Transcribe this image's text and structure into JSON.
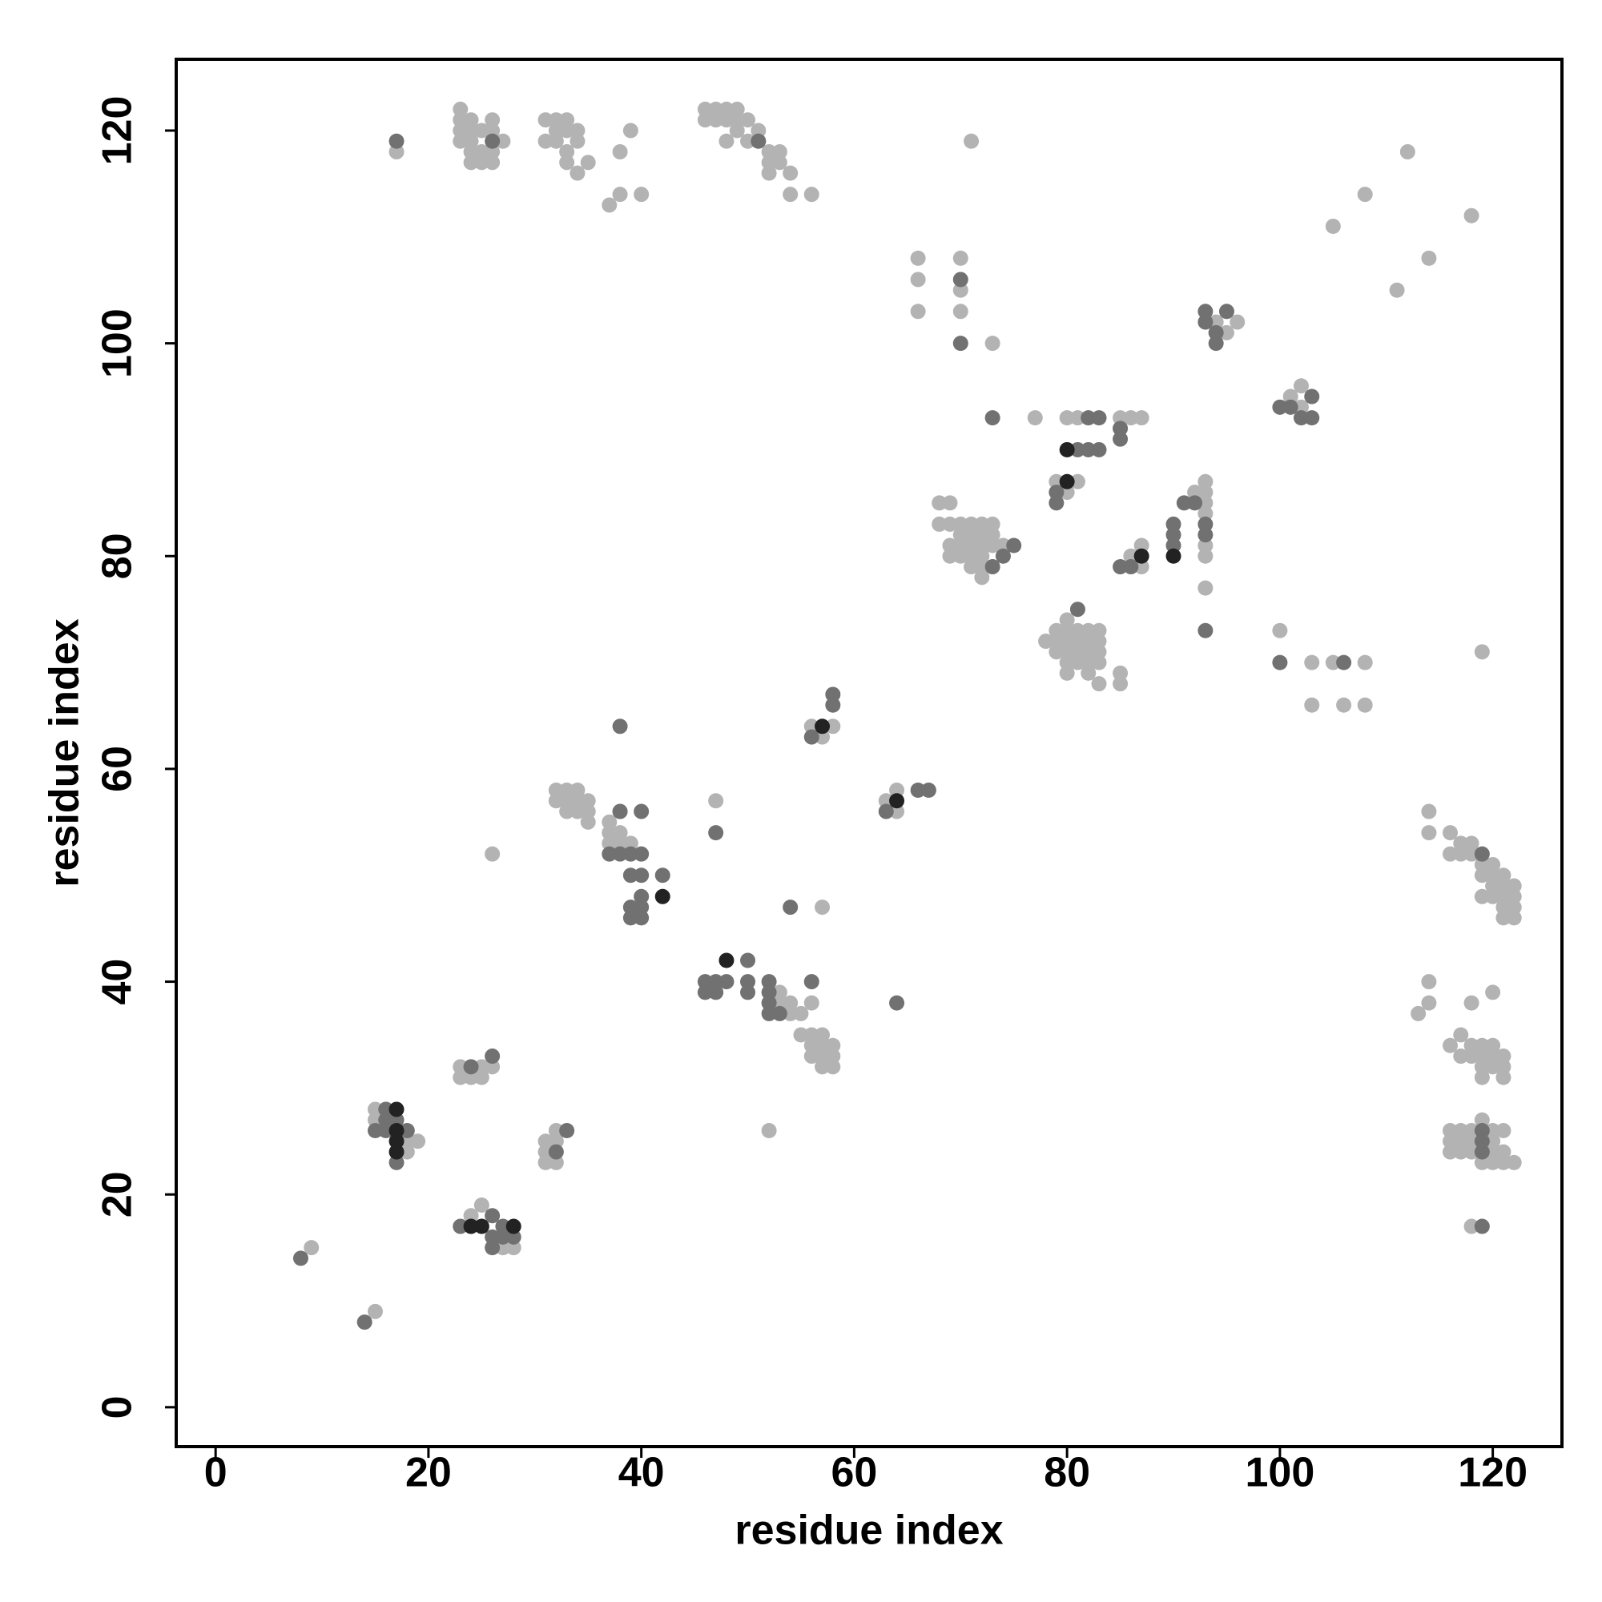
{
  "chart_data": {
    "type": "scatter",
    "xlabel": "residue index",
    "ylabel": "residue index",
    "xlim": [
      -3.7,
      126.5
    ],
    "ylim": [
      -3.7,
      126.7
    ],
    "xticks": [
      0,
      20,
      40,
      60,
      80,
      100,
      120
    ],
    "yticks": [
      0,
      20,
      40,
      60,
      80,
      100,
      120
    ],
    "series": [
      {
        "color": "#b3b3b3",
        "x": [
          23,
          23,
          23,
          23,
          24,
          24,
          24,
          24,
          24,
          25,
          25,
          25,
          26,
          26,
          26,
          26,
          27,
          17,
          31,
          31,
          32,
          32,
          32,
          33,
          33,
          33,
          33,
          34,
          34,
          34,
          35,
          37,
          38,
          38,
          39,
          40,
          46,
          46,
          47,
          47,
          48,
          48,
          48,
          49,
          49,
          49,
          50,
          50,
          51,
          51,
          52,
          52,
          52,
          53,
          53,
          54,
          54,
          56,
          71,
          105,
          108,
          112,
          118,
          111,
          114,
          66,
          66,
          66,
          70,
          70,
          70,
          73,
          77,
          80,
          81,
          85,
          86,
          87,
          85,
          79,
          80,
          81,
          93,
          92,
          93,
          93,
          93,
          93,
          93,
          93,
          68,
          69,
          68,
          69,
          70,
          71,
          72,
          73,
          70,
          71,
          72,
          73,
          69,
          70,
          71,
          72,
          73,
          74,
          70,
          71,
          72,
          74,
          69,
          71,
          72,
          72,
          87,
          86,
          87,
          101,
          102,
          102,
          78,
          79,
          80,
          79,
          80,
          81,
          82,
          83,
          79,
          80,
          81,
          82,
          83,
          80,
          81,
          82,
          83,
          80,
          82,
          83,
          85,
          85,
          81,
          82,
          83,
          80,
          100,
          103,
          105,
          108,
          103,
          106,
          108,
          119,
          94,
          95,
          96,
          94,
          56,
          57,
          58,
          63,
          64,
          64,
          47,
          26,
          57,
          32,
          33,
          34,
          32,
          33,
          34,
          35,
          33,
          34,
          35,
          35,
          37,
          37,
          38,
          37,
          38,
          39,
          38,
          114,
          114,
          116,
          116,
          117,
          117,
          118,
          118,
          119,
          119,
          120,
          120,
          120,
          121,
          121,
          121,
          122,
          122,
          122,
          122,
          121,
          121,
          119,
          120,
          53,
          53,
          54,
          54,
          55,
          56,
          55,
          56,
          57,
          56,
          57,
          58,
          56,
          57,
          58,
          57,
          58,
          114,
          114,
          113,
          118,
          120,
          116,
          117,
          117,
          118,
          118,
          119,
          119,
          119,
          120,
          120,
          120,
          121,
          121,
          121,
          119,
          116,
          116,
          116,
          117,
          117,
          117,
          118,
          118,
          118,
          119,
          119,
          120,
          120,
          120,
          120,
          121,
          121,
          121,
          122,
          118,
          23,
          23,
          24,
          25,
          25,
          26,
          31,
          31,
          31,
          32,
          32,
          32,
          15,
          15,
          16,
          18,
          18,
          19,
          52,
          24,
          25,
          27,
          27,
          28,
          9,
          15
        ],
        "y": [
          122,
          121,
          120,
          119,
          121,
          120,
          119,
          118,
          117,
          120,
          118,
          117,
          121,
          120,
          118,
          117,
          119,
          118,
          121,
          119,
          121,
          120,
          119,
          121,
          120,
          118,
          117,
          120,
          119,
          116,
          117,
          113,
          118,
          114,
          120,
          114,
          122,
          121,
          122,
          121,
          122,
          121,
          119,
          122,
          121,
          120,
          121,
          119,
          120,
          119,
          118,
          117,
          116,
          118,
          117,
          116,
          114,
          114,
          119,
          111,
          114,
          118,
          112,
          105,
          108,
          108,
          106,
          103,
          108,
          105,
          103,
          100,
          93,
          93,
          93,
          93,
          93,
          93,
          92,
          87,
          86,
          87,
          87,
          86,
          86,
          85,
          84,
          81,
          80,
          77,
          85,
          85,
          83,
          83,
          83,
          83,
          83,
          83,
          82,
          82,
          82,
          82,
          81,
          81,
          81,
          81,
          81,
          81,
          80,
          80,
          80,
          80,
          80,
          79,
          79,
          78,
          81,
          80,
          79,
          95,
          96,
          94,
          72,
          73,
          74,
          72,
          73,
          73,
          73,
          73,
          71,
          71,
          71,
          71,
          71,
          70,
          70,
          70,
          70,
          69,
          69,
          68,
          69,
          68,
          72,
          72,
          72,
          72,
          73,
          70,
          70,
          70,
          66,
          66,
          66,
          71,
          102,
          101,
          102,
          101,
          64,
          63,
          64,
          57,
          58,
          56,
          57,
          52,
          47,
          58,
          58,
          58,
          57,
          57,
          57,
          57,
          56,
          56,
          56,
          55,
          55,
          54,
          54,
          53,
          53,
          53,
          56,
          56,
          54,
          54,
          52,
          53,
          52,
          53,
          52,
          51,
          50,
          51,
          50,
          49,
          50,
          49,
          48,
          49,
          48,
          47,
          46,
          47,
          46,
          48,
          48,
          39,
          38,
          38,
          37,
          37,
          38,
          35,
          35,
          35,
          34,
          34,
          34,
          33,
          33,
          33,
          32,
          32,
          40,
          38,
          37,
          38,
          39,
          34,
          35,
          33,
          34,
          33,
          34,
          33,
          32,
          34,
          33,
          32,
          33,
          32,
          31,
          31,
          26,
          25,
          24,
          26,
          25,
          24,
          26,
          25,
          24,
          27,
          23,
          26,
          25,
          24,
          23,
          26,
          24,
          23,
          23,
          17,
          32,
          31,
          31,
          31,
          32,
          32,
          25,
          24,
          23,
          26,
          25,
          23,
          28,
          27,
          28,
          25,
          24,
          25,
          26,
          18,
          19,
          16,
          15,
          15,
          15,
          9
        ]
      },
      {
        "color": "#717171",
        "x": [
          17,
          26,
          51,
          70,
          70,
          73,
          93,
          93,
          95,
          94,
          94,
          82,
          83,
          81,
          82,
          83,
          79,
          79,
          85,
          85,
          92,
          91,
          90,
          90,
          90,
          93,
          93,
          85,
          86,
          75,
          73,
          74,
          93,
          81,
          100,
          101,
          102,
          103,
          103,
          100,
          106,
          58,
          58,
          56,
          63,
          66,
          67,
          38,
          47,
          38,
          40,
          37,
          38,
          39,
          40,
          39,
          40,
          42,
          40,
          39,
          40,
          39,
          40,
          54,
          46,
          47,
          48,
          46,
          47,
          50,
          50,
          50,
          52,
          52,
          52,
          52,
          53,
          56,
          64,
          119,
          119,
          119,
          119,
          119,
          24,
          26,
          32,
          33,
          15,
          16,
          16,
          17,
          18,
          17,
          16,
          23,
          26,
          26,
          26,
          27,
          27,
          28,
          8,
          14
        ],
        "y": [
          119,
          119,
          119,
          106,
          100,
          93,
          103,
          102,
          103,
          100,
          101,
          93,
          93,
          90,
          90,
          90,
          85,
          86,
          92,
          91,
          85,
          85,
          83,
          82,
          81,
          83,
          82,
          79,
          79,
          81,
          79,
          80,
          73,
          75,
          94,
          94,
          93,
          95,
          93,
          70,
          70,
          67,
          66,
          63,
          56,
          58,
          58,
          64,
          54,
          56,
          56,
          52,
          52,
          52,
          52,
          50,
          50,
          50,
          48,
          47,
          47,
          46,
          46,
          47,
          40,
          40,
          40,
          39,
          39,
          42,
          40,
          39,
          40,
          39,
          38,
          37,
          37,
          40,
          38,
          52,
          26,
          25,
          24,
          17,
          32,
          33,
          24,
          26,
          26,
          27,
          26,
          27,
          26,
          23,
          28,
          17,
          18,
          16,
          15,
          17,
          16,
          16,
          14,
          8
        ]
      },
      {
        "color": "#222222",
        "x": [
          80,
          80,
          87,
          90,
          57,
          64,
          48,
          42,
          17,
          17,
          17,
          17,
          24,
          25,
          28
        ],
        "y": [
          90,
          87,
          80,
          80,
          64,
          57,
          42,
          48,
          28,
          26,
          25,
          24,
          17,
          17,
          17
        ]
      }
    ]
  }
}
